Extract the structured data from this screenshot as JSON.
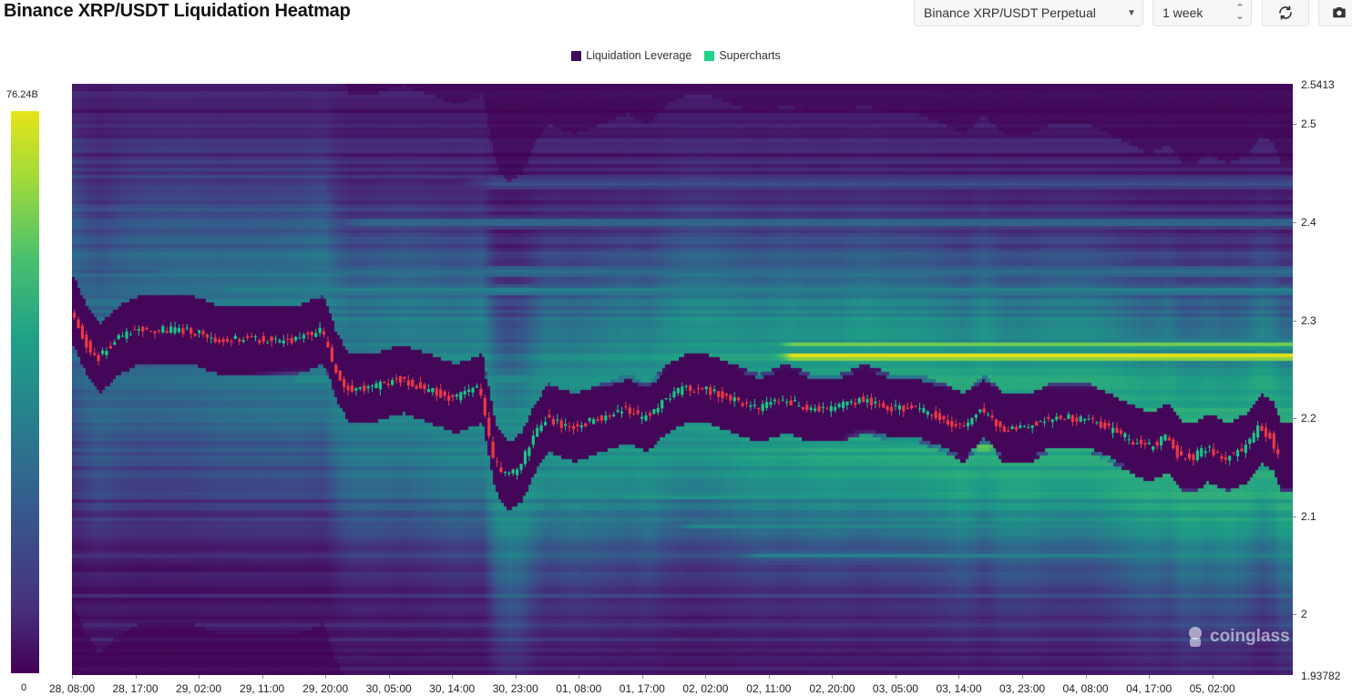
{
  "header": {
    "title": "Binance XRP/USDT Liquidation Heatmap",
    "pair_select": "Binance XRP/USDT Perpetual",
    "range_select": "1 week"
  },
  "icons": {
    "pair_caret": "caret-down-icon",
    "range_stepper": "up-down-stepper-icon",
    "refresh": "refresh-icon",
    "camera": "camera-icon"
  },
  "watermark": "coinglass",
  "chart_data": {
    "type": "heatmap",
    "title": "Binance XRP/USDT Liquidation Heatmap",
    "legend": [
      {
        "name": "Liquidation Leverage",
        "color": "#3d0b5c"
      },
      {
        "name": "Supercharts",
        "color": "#1fd38a"
      }
    ],
    "legend_placement": "top-center",
    "colorscale": "viridis",
    "colorbar": {
      "min_label": "0",
      "max_label": "76.24B"
    },
    "y_axis": {
      "min": 1.93782,
      "max": 2.5413,
      "min_label": "1.93782",
      "max_label": "2.5413",
      "ticks": [
        2,
        2.1,
        2.2,
        2.3,
        2.4,
        2.5
      ],
      "tick_labels": [
        "2",
        "2.1",
        "2.2",
        "2.3",
        "2.4",
        "2.5"
      ]
    },
    "x_axis": {
      "tick_labels": [
        "28, 08:00",
        "28, 17:00",
        "29, 02:00",
        "29, 11:00",
        "29, 20:00",
        "30, 05:00",
        "30, 14:00",
        "30, 23:00",
        "01, 08:00",
        "01, 17:00",
        "02, 02:00",
        "02, 11:00",
        "02, 20:00",
        "03, 05:00",
        "03, 14:00",
        "03, 23:00",
        "04, 08:00",
        "04, 17:00",
        "05, 02:00"
      ]
    },
    "price_path": [
      [
        0,
        2.31
      ],
      [
        2,
        2.28
      ],
      [
        4,
        2.26
      ],
      [
        7,
        2.28
      ],
      [
        10,
        2.29
      ],
      [
        14,
        2.29
      ],
      [
        18,
        2.29
      ],
      [
        22,
        2.28
      ],
      [
        26,
        2.28
      ],
      [
        30,
        2.28
      ],
      [
        34,
        2.28
      ],
      [
        38,
        2.29
      ],
      [
        40,
        2.25
      ],
      [
        42,
        2.23
      ],
      [
        45,
        2.23
      ],
      [
        50,
        2.24
      ],
      [
        54,
        2.23
      ],
      [
        58,
        2.22
      ],
      [
        62,
        2.23
      ],
      [
        64,
        2.16
      ],
      [
        66,
        2.14
      ],
      [
        68,
        2.15
      ],
      [
        70,
        2.18
      ],
      [
        72,
        2.2
      ],
      [
        76,
        2.19
      ],
      [
        80,
        2.2
      ],
      [
        84,
        2.21
      ],
      [
        87,
        2.2
      ],
      [
        90,
        2.22
      ],
      [
        93,
        2.23
      ],
      [
        96,
        2.23
      ],
      [
        100,
        2.22
      ],
      [
        104,
        2.21
      ],
      [
        108,
        2.22
      ],
      [
        112,
        2.21
      ],
      [
        116,
        2.21
      ],
      [
        120,
        2.22
      ],
      [
        124,
        2.21
      ],
      [
        128,
        2.21
      ],
      [
        132,
        2.2
      ],
      [
        135,
        2.19
      ],
      [
        138,
        2.21
      ],
      [
        141,
        2.19
      ],
      [
        145,
        2.19
      ],
      [
        148,
        2.2
      ],
      [
        151,
        2.2
      ],
      [
        154,
        2.2
      ],
      [
        157,
        2.19
      ],
      [
        160,
        2.18
      ],
      [
        163,
        2.17
      ],
      [
        166,
        2.18
      ],
      [
        168,
        2.16
      ],
      [
        170,
        2.16
      ],
      [
        172,
        2.17
      ],
      [
        175,
        2.16
      ],
      [
        178,
        2.17
      ],
      [
        180,
        2.19
      ],
      [
        182,
        2.18
      ],
      [
        183,
        2.16
      ]
    ],
    "price_path_x_unit": "hours since 28, 08:00",
    "liquidation_bands": [
      {
        "price": 2.263,
        "intensity": 0.95,
        "start_hour": 105,
        "end_hour": 183
      },
      {
        "price": 2.275,
        "intensity": 0.8,
        "start_hour": 105,
        "end_hour": 183
      },
      {
        "price": 2.16,
        "intensity": 0.95,
        "start_hour": 155,
        "end_hour": 172
      },
      {
        "price": 2.17,
        "intensity": 0.85,
        "start_hour": 130,
        "end_hour": 165
      },
      {
        "price": 2.18,
        "intensity": 0.6,
        "start_hour": 120,
        "end_hour": 150
      },
      {
        "price": 2.33,
        "intensity": 0.45,
        "start_hour": 20,
        "end_hour": 183
      },
      {
        "price": 2.35,
        "intensity": 0.4,
        "start_hour": 10,
        "end_hour": 183
      },
      {
        "price": 2.24,
        "intensity": 0.5,
        "start_hour": 30,
        "end_hour": 183
      },
      {
        "price": 2.12,
        "intensity": 0.5,
        "start_hour": 80,
        "end_hour": 183
      },
      {
        "price": 2.09,
        "intensity": 0.45,
        "start_hour": 90,
        "end_hour": 183
      },
      {
        "price": 2.06,
        "intensity": 0.4,
        "start_hour": 100,
        "end_hour": 183
      },
      {
        "price": 2.4,
        "intensity": 0.3,
        "start_hour": 40,
        "end_hour": 183
      },
      {
        "price": 2.44,
        "intensity": 0.25,
        "start_hour": 60,
        "end_hour": 183
      }
    ]
  }
}
